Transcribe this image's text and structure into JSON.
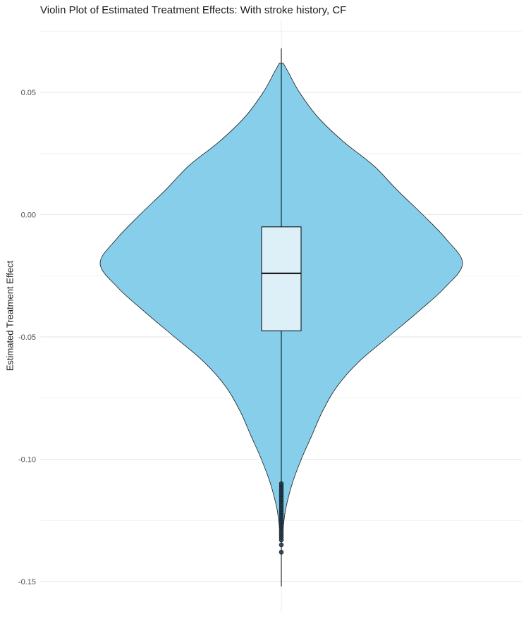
{
  "chart_data": {
    "type": "violin",
    "title": "Violin Plot of Estimated Treatment Effects: With stroke history, CF",
    "xlabel": "",
    "ylabel": "Estimated Treatment Effect",
    "ylim": [
      -0.155,
      0.075
    ],
    "y_ticks": [
      "0.05",
      "0.00",
      "-0.05",
      "-0.10",
      "-0.15"
    ],
    "y_tick_values": [
      0.05,
      0.0,
      -0.05,
      -0.1,
      -0.15
    ],
    "y_minor_ticks": [
      0.075,
      0.025,
      -0.025,
      -0.075,
      -0.125
    ],
    "grid": true,
    "violin_color": "#87CEEB",
    "box_color": "#DDF0F8",
    "violin_density": [
      [
        0.062,
        0.01
      ],
      [
        0.058,
        0.04
      ],
      [
        0.05,
        0.1
      ],
      [
        0.04,
        0.2
      ],
      [
        0.03,
        0.34
      ],
      [
        0.02,
        0.51
      ],
      [
        0.01,
        0.64
      ],
      [
        0.0,
        0.78
      ],
      [
        -0.01,
        0.91
      ],
      [
        -0.02,
        1.0
      ],
      [
        -0.03,
        0.9
      ],
      [
        -0.04,
        0.75
      ],
      [
        -0.05,
        0.59
      ],
      [
        -0.06,
        0.43
      ],
      [
        -0.07,
        0.31
      ],
      [
        -0.08,
        0.23
      ],
      [
        -0.09,
        0.17
      ],
      [
        -0.1,
        0.11
      ],
      [
        -0.11,
        0.06
      ],
      [
        -0.12,
        0.025
      ],
      [
        -0.128,
        0.01
      ]
    ],
    "box": {
      "q1": -0.0475,
      "median": -0.024,
      "q3": -0.005,
      "whisker_low": -0.152,
      "whisker_high": 0.068
    },
    "outliers": [
      -0.11,
      -0.111,
      -0.112,
      -0.113,
      -0.114,
      -0.115,
      -0.116,
      -0.117,
      -0.118,
      -0.119,
      -0.12,
      -0.121,
      -0.122,
      -0.123,
      -0.124,
      -0.125,
      -0.126,
      -0.127,
      -0.128,
      -0.129,
      -0.13,
      -0.131,
      -0.132,
      -0.133,
      -0.135,
      -0.138
    ]
  }
}
